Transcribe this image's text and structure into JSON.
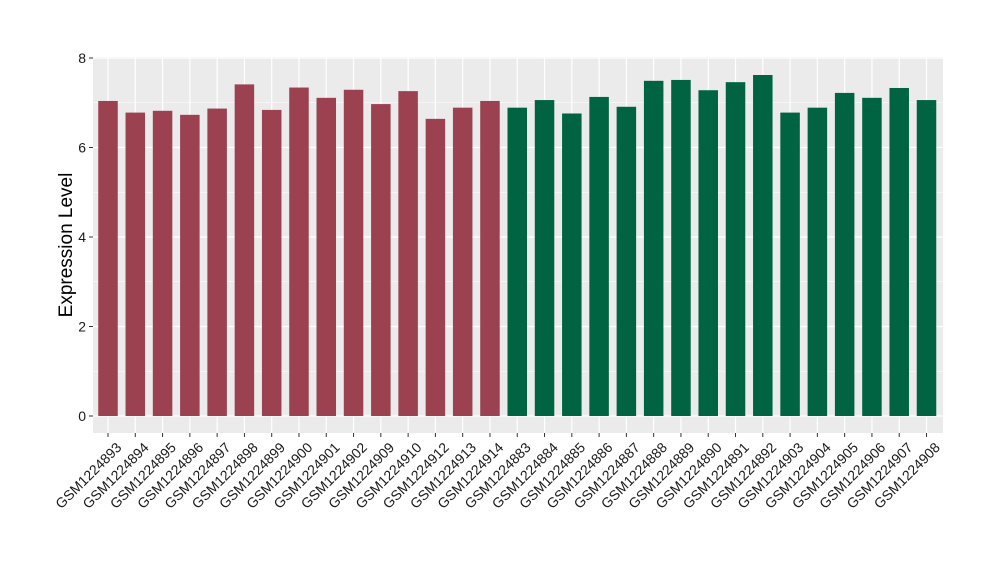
{
  "chart_data": {
    "type": "bar",
    "xlabel": "",
    "ylabel": "Expression Level",
    "ylim": [
      0,
      8
    ],
    "yticks": [
      0,
      2,
      4,
      6,
      8
    ],
    "grid": true,
    "categories": [
      "GSM1224893",
      "GSM1224894",
      "GSM1224895",
      "GSM1224896",
      "GSM1224897",
      "GSM1224898",
      "GSM1224899",
      "GSM1224900",
      "GSM1224901",
      "GSM1224902",
      "GSM1224909",
      "GSM1224910",
      "GSM1224912",
      "GSM1224913",
      "GSM1224914",
      "GSM1224883",
      "GSM1224884",
      "GSM1224885",
      "GSM1224886",
      "GSM1224887",
      "GSM1224888",
      "GSM1224889",
      "GSM1224890",
      "GSM1224891",
      "GSM1224892",
      "GSM1224903",
      "GSM1224904",
      "GSM1224905",
      "GSM1224906",
      "GSM1224907",
      "GSM1224908"
    ],
    "values": [
      7.04,
      6.78,
      6.82,
      6.73,
      6.87,
      7.41,
      6.84,
      7.34,
      7.11,
      7.29,
      6.97,
      7.26,
      6.64,
      6.89,
      7.04,
      6.89,
      7.06,
      6.76,
      7.13,
      6.91,
      7.49,
      7.51,
      7.28,
      7.46,
      7.62,
      6.78,
      6.89,
      7.22,
      7.11,
      7.33,
      7.06
    ],
    "groups": [
      0,
      0,
      0,
      0,
      0,
      0,
      0,
      0,
      0,
      0,
      0,
      0,
      0,
      0,
      0,
      1,
      1,
      1,
      1,
      1,
      1,
      1,
      1,
      1,
      1,
      1,
      1,
      1,
      1,
      1,
      1
    ],
    "group_colors": [
      "#9b4150",
      "#006442"
    ],
    "panel_background": "#ebebeb",
    "gridline_color": "#ffffff"
  }
}
